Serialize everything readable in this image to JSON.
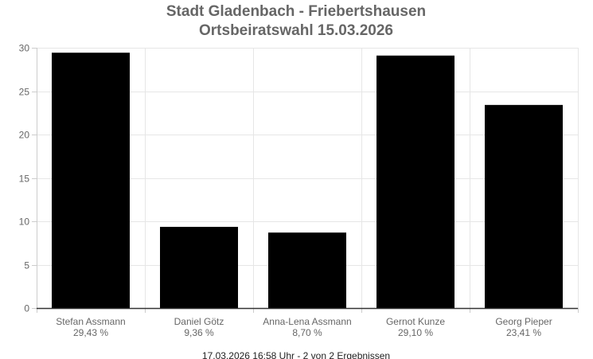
{
  "chart_data": {
    "type": "bar",
    "title": [
      "Stadt Gladenbach - Friebertshausen",
      "Ortsbeiratswahl 15.03.2026"
    ],
    "categories": [
      "Stefan Assmann",
      "Daniel Götz",
      "Anna-Lena Assmann",
      "Gernot Kunze",
      "Georg Pieper"
    ],
    "value_labels": [
      "29,43 %",
      "9,36 %",
      "8,70 %",
      "29,10 %",
      "23,41 %"
    ],
    "values": [
      29.43,
      9.36,
      8.7,
      29.1,
      23.41
    ],
    "ylim": [
      0,
      30
    ],
    "yticks": [
      0,
      5,
      10,
      15,
      20,
      25,
      30
    ],
    "grid": true,
    "bar_color": "#000000",
    "grid_color": "#e6e6e6",
    "footer": "17.03.2026 16:58 Uhr - 2 von 2 Ergebnissen"
  }
}
